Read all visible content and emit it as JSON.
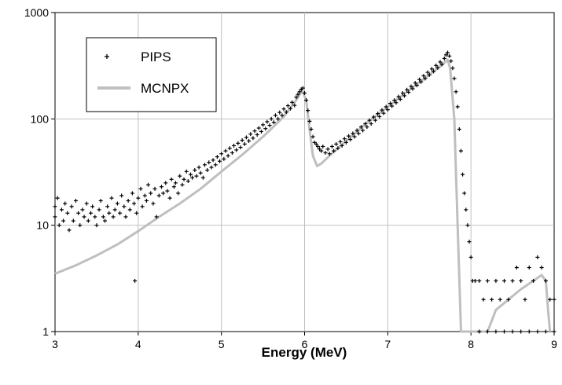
{
  "chart_data": {
    "type": "scatter",
    "title": "",
    "xlabel": "Energy (MeV)",
    "ylabel": "",
    "xlim": [
      3,
      9
    ],
    "ylim": [
      1,
      1000
    ],
    "y_scale": "log",
    "grid": true,
    "legend_position": "top-left",
    "x_ticks": [
      "3",
      "4",
      "5",
      "6",
      "7",
      "8",
      "9"
    ],
    "y_ticks": [
      "1",
      "10",
      "100",
      "1000"
    ],
    "series": [
      {
        "name": "PIPS",
        "marker": "plus",
        "color": "#000000",
        "points": [
          [
            3.0,
            15
          ],
          [
            3.0,
            12
          ],
          [
            3.03,
            18
          ],
          [
            3.05,
            10
          ],
          [
            3.08,
            14
          ],
          [
            3.1,
            11
          ],
          [
            3.12,
            16
          ],
          [
            3.15,
            13
          ],
          [
            3.17,
            9
          ],
          [
            3.2,
            15
          ],
          [
            3.22,
            11
          ],
          [
            3.25,
            17
          ],
          [
            3.28,
            13
          ],
          [
            3.3,
            10
          ],
          [
            3.33,
            14
          ],
          [
            3.35,
            12
          ],
          [
            3.38,
            16
          ],
          [
            3.4,
            11
          ],
          [
            3.43,
            13
          ],
          [
            3.45,
            15
          ],
          [
            3.48,
            12
          ],
          [
            3.5,
            10
          ],
          [
            3.53,
            14
          ],
          [
            3.55,
            17
          ],
          [
            3.58,
            12
          ],
          [
            3.6,
            11
          ],
          [
            3.63,
            15
          ],
          [
            3.65,
            13
          ],
          [
            3.68,
            18
          ],
          [
            3.7,
            12
          ],
          [
            3.72,
            14
          ],
          [
            3.75,
            16
          ],
          [
            3.78,
            13
          ],
          [
            3.8,
            19
          ],
          [
            3.83,
            15
          ],
          [
            3.85,
            12
          ],
          [
            3.88,
            17
          ],
          [
            3.9,
            14
          ],
          [
            3.93,
            20
          ],
          [
            3.95,
            16
          ],
          [
            3.96,
            3
          ],
          [
            3.98,
            13
          ],
          [
            4.0,
            18
          ],
          [
            4.03,
            22
          ],
          [
            4.05,
            15
          ],
          [
            4.08,
            19
          ],
          [
            4.1,
            17
          ],
          [
            4.12,
            24
          ],
          [
            4.15,
            20
          ],
          [
            4.18,
            16
          ],
          [
            4.2,
            22
          ],
          [
            4.22,
            12
          ],
          [
            4.25,
            19
          ],
          [
            4.28,
            23
          ],
          [
            4.3,
            20
          ],
          [
            4.33,
            25
          ],
          [
            4.35,
            21
          ],
          [
            4.38,
            18
          ],
          [
            4.4,
            27
          ],
          [
            4.43,
            23
          ],
          [
            4.45,
            25
          ],
          [
            4.48,
            20
          ],
          [
            4.5,
            29
          ],
          [
            4.53,
            24
          ],
          [
            4.55,
            27
          ],
          [
            4.58,
            32
          ],
          [
            4.6,
            26
          ],
          [
            4.63,
            30
          ],
          [
            4.65,
            28
          ],
          [
            4.68,
            33
          ],
          [
            4.7,
            29
          ],
          [
            4.73,
            35
          ],
          [
            4.75,
            31
          ],
          [
            4.78,
            28
          ],
          [
            4.8,
            37
          ],
          [
            4.83,
            33
          ],
          [
            4.85,
            39
          ],
          [
            4.88,
            35
          ],
          [
            4.9,
            41
          ],
          [
            4.93,
            37
          ],
          [
            4.95,
            44
          ],
          [
            4.98,
            40
          ],
          [
            5.0,
            47
          ],
          [
            5.03,
            42
          ],
          [
            5.05,
            50
          ],
          [
            5.08,
            45
          ],
          [
            5.1,
            53
          ],
          [
            5.13,
            48
          ],
          [
            5.15,
            56
          ],
          [
            5.18,
            51
          ],
          [
            5.2,
            59
          ],
          [
            5.23,
            54
          ],
          [
            5.25,
            63
          ],
          [
            5.28,
            58
          ],
          [
            5.3,
            67
          ],
          [
            5.33,
            62
          ],
          [
            5.35,
            72
          ],
          [
            5.38,
            66
          ],
          [
            5.4,
            77
          ],
          [
            5.43,
            71
          ],
          [
            5.45,
            82
          ],
          [
            5.48,
            76
          ],
          [
            5.5,
            88
          ],
          [
            5.53,
            81
          ],
          [
            5.55,
            94
          ],
          [
            5.58,
            87
          ],
          [
            5.6,
            100
          ],
          [
            5.63,
            93
          ],
          [
            5.65,
            108
          ],
          [
            5.68,
            100
          ],
          [
            5.7,
            115
          ],
          [
            5.73,
            108
          ],
          [
            5.75,
            124
          ],
          [
            5.78,
            116
          ],
          [
            5.8,
            133
          ],
          [
            5.83,
            125
          ],
          [
            5.85,
            143
          ],
          [
            5.88,
            134
          ],
          [
            5.9,
            160
          ],
          [
            5.92,
            170
          ],
          [
            5.94,
            180
          ],
          [
            5.96,
            190
          ],
          [
            5.98,
            195
          ],
          [
            6.0,
            175
          ],
          [
            6.02,
            150
          ],
          [
            6.04,
            120
          ],
          [
            6.06,
            95
          ],
          [
            6.08,
            80
          ],
          [
            6.1,
            68
          ],
          [
            6.12,
            60
          ],
          [
            6.14,
            58
          ],
          [
            6.16,
            55
          ],
          [
            6.18,
            52
          ],
          [
            6.2,
            50
          ],
          [
            6.22,
            55
          ],
          [
            6.25,
            48
          ],
          [
            6.28,
            52
          ],
          [
            6.3,
            47
          ],
          [
            6.33,
            55
          ],
          [
            6.35,
            50
          ],
          [
            6.38,
            58
          ],
          [
            6.4,
            53
          ],
          [
            6.43,
            61
          ],
          [
            6.45,
            56
          ],
          [
            6.48,
            65
          ],
          [
            6.5,
            60
          ],
          [
            6.53,
            69
          ],
          [
            6.55,
            64
          ],
          [
            6.58,
            73
          ],
          [
            6.6,
            68
          ],
          [
            6.63,
            78
          ],
          [
            6.65,
            73
          ],
          [
            6.68,
            84
          ],
          [
            6.7,
            78
          ],
          [
            6.73,
            90
          ],
          [
            6.75,
            84
          ],
          [
            6.78,
            97
          ],
          [
            6.8,
            90
          ],
          [
            6.83,
            104
          ],
          [
            6.85,
            97
          ],
          [
            6.88,
            112
          ],
          [
            6.9,
            105
          ],
          [
            6.93,
            121
          ],
          [
            6.95,
            113
          ],
          [
            6.98,
            130
          ],
          [
            7.0,
            122
          ],
          [
            7.03,
            140
          ],
          [
            7.05,
            132
          ],
          [
            7.08,
            150
          ],
          [
            7.1,
            142
          ],
          [
            7.13,
            162
          ],
          [
            7.15,
            153
          ],
          [
            7.18,
            175
          ],
          [
            7.2,
            165
          ],
          [
            7.23,
            188
          ],
          [
            7.25,
            178
          ],
          [
            7.28,
            202
          ],
          [
            7.3,
            192
          ],
          [
            7.33,
            218
          ],
          [
            7.35,
            207
          ],
          [
            7.38,
            235
          ],
          [
            7.4,
            223
          ],
          [
            7.43,
            254
          ],
          [
            7.45,
            240
          ],
          [
            7.48,
            274
          ],
          [
            7.5,
            259
          ],
          [
            7.53,
            295
          ],
          [
            7.55,
            280
          ],
          [
            7.58,
            318
          ],
          [
            7.6,
            302
          ],
          [
            7.63,
            343
          ],
          [
            7.65,
            326
          ],
          [
            7.68,
            370
          ],
          [
            7.7,
            400
          ],
          [
            7.72,
            420
          ],
          [
            7.74,
            390
          ],
          [
            7.76,
            350
          ],
          [
            7.78,
            300
          ],
          [
            7.8,
            240
          ],
          [
            7.82,
            180
          ],
          [
            7.84,
            130
          ],
          [
            7.86,
            80
          ],
          [
            7.88,
            50
          ],
          [
            7.9,
            30
          ],
          [
            7.92,
            20
          ],
          [
            7.94,
            14
          ],
          [
            7.96,
            10
          ],
          [
            7.98,
            7
          ],
          [
            8.0,
            5
          ],
          [
            8.02,
            3
          ],
          [
            8.05,
            3
          ],
          [
            8.1,
            3
          ],
          [
            8.15,
            2
          ],
          [
            8.2,
            3
          ],
          [
            8.25,
            2
          ],
          [
            8.3,
            3
          ],
          [
            8.35,
            2
          ],
          [
            8.4,
            3
          ],
          [
            8.45,
            2
          ],
          [
            8.5,
            3
          ],
          [
            8.55,
            4
          ],
          [
            8.6,
            3
          ],
          [
            8.65,
            2
          ],
          [
            8.7,
            4
          ],
          [
            8.75,
            3
          ],
          [
            8.8,
            5
          ],
          [
            8.85,
            4
          ],
          [
            8.9,
            3
          ],
          [
            8.95,
            2
          ],
          [
            9.0,
            2
          ],
          [
            8.1,
            1
          ],
          [
            8.2,
            1
          ],
          [
            8.3,
            1
          ],
          [
            8.4,
            1
          ],
          [
            8.5,
            1
          ],
          [
            8.6,
            1
          ],
          [
            8.7,
            1
          ],
          [
            8.8,
            1
          ],
          [
            8.9,
            1
          ],
          [
            9.0,
            1
          ]
        ]
      },
      {
        "name": "MCNPX",
        "marker": "line",
        "color": "#bfbfbf",
        "points": [
          [
            3.0,
            3.5
          ],
          [
            3.25,
            4.2
          ],
          [
            3.5,
            5.2
          ],
          [
            3.75,
            6.6
          ],
          [
            4.0,
            8.8
          ],
          [
            4.25,
            12
          ],
          [
            4.5,
            16
          ],
          [
            4.75,
            22
          ],
          [
            5.0,
            32
          ],
          [
            5.25,
            46
          ],
          [
            5.5,
            68
          ],
          [
            5.75,
            105
          ],
          [
            5.9,
            150
          ],
          [
            5.97,
            185
          ],
          [
            6.02,
            150
          ],
          [
            6.06,
            80
          ],
          [
            6.1,
            45
          ],
          [
            6.15,
            36
          ],
          [
            6.2,
            38
          ],
          [
            6.3,
            45
          ],
          [
            6.5,
            62
          ],
          [
            6.75,
            92
          ],
          [
            7.0,
            130
          ],
          [
            7.25,
            185
          ],
          [
            7.5,
            260
          ],
          [
            7.65,
            320
          ],
          [
            7.72,
            360
          ],
          [
            7.75,
            300
          ],
          [
            7.8,
            100
          ],
          [
            7.84,
            10
          ],
          [
            7.88,
            1
          ],
          [
            8.2,
            1
          ],
          [
            8.3,
            1.6
          ],
          [
            8.45,
            2.0
          ],
          [
            8.6,
            2.5
          ],
          [
            8.75,
            3.0
          ],
          [
            8.85,
            3.4
          ],
          [
            8.9,
            3.0
          ],
          [
            8.93,
            1.5
          ],
          [
            8.95,
            1
          ]
        ]
      }
    ]
  }
}
